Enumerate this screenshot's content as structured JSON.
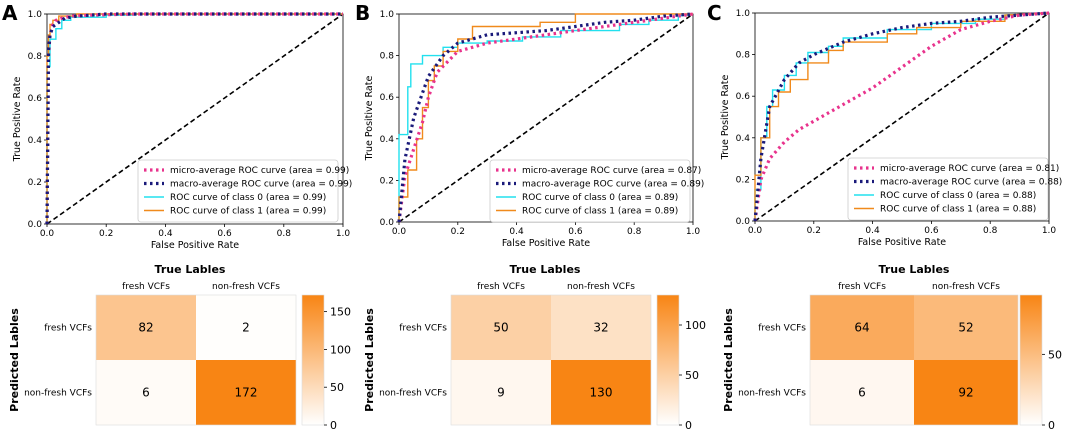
{
  "chart_data": [
    {
      "type": "line",
      "panel": "A",
      "xlabel": "False Positive Rate",
      "ylabel": "True Positive Rate",
      "xlim": [
        0,
        1
      ],
      "ylim": [
        0,
        1
      ],
      "xticks": [
        "0.0",
        "0.2",
        "0.4",
        "0.6",
        "0.8",
        "1.0"
      ],
      "yticks": [
        "0.0",
        "0.2",
        "0.4",
        "0.6",
        "0.8",
        "1.0"
      ],
      "legend_position": "lower right",
      "series": [
        {
          "name": "micro-average ROC curve (area = 0.99)",
          "color": "#e8338d",
          "style": "dotted",
          "x": [
            0,
            0.005,
            0.01,
            0.02,
            0.03,
            0.05,
            0.08,
            0.15,
            0.3,
            1.0
          ],
          "y": [
            0,
            0.8,
            0.9,
            0.95,
            0.97,
            0.98,
            0.99,
            0.995,
            1.0,
            1.0
          ]
        },
        {
          "name": "macro-average ROC curve (area = 0.99)",
          "color": "#1a1a7a",
          "style": "dotted",
          "x": [
            0,
            0.005,
            0.01,
            0.02,
            0.04,
            0.06,
            0.1,
            0.2,
            1.0
          ],
          "y": [
            0,
            0.82,
            0.9,
            0.94,
            0.96,
            0.98,
            0.99,
            1.0,
            1.0
          ]
        },
        {
          "name": "ROC curve of class 0 (area = 0.99)",
          "color": "#22e0ee",
          "style": "solid",
          "x": [
            0,
            0,
            0.01,
            0.01,
            0.03,
            0.03,
            0.05,
            0.05,
            0.08,
            0.08,
            0.2,
            0.2,
            0.3,
            0.3,
            1.0
          ],
          "y": [
            0,
            0.75,
            0.75,
            0.88,
            0.88,
            0.93,
            0.93,
            0.97,
            0.97,
            0.985,
            0.985,
            0.995,
            0.995,
            1.0,
            1.0
          ]
        },
        {
          "name": "ROC curve of class 1 (area = 0.99)",
          "color": "#f08a1c",
          "style": "solid",
          "x": [
            0,
            0,
            0.005,
            0.005,
            0.01,
            0.01,
            0.02,
            0.02,
            0.04,
            0.04,
            0.1,
            0.1,
            1.0
          ],
          "y": [
            0,
            0.8,
            0.8,
            0.9,
            0.9,
            0.95,
            0.95,
            0.97,
            0.97,
            0.99,
            0.99,
            1.0,
            1.0
          ]
        }
      ]
    },
    {
      "type": "line",
      "panel": "B",
      "xlabel": "False Positive Rate",
      "ylabel": "True Positive Rate",
      "xlim": [
        0,
        1
      ],
      "ylim": [
        0,
        1
      ],
      "xticks": [
        "0.0",
        "0.2",
        "0.4",
        "0.6",
        "0.8",
        "1.0"
      ],
      "yticks": [
        "0.0",
        "0.2",
        "0.4",
        "0.6",
        "0.8",
        "1.0"
      ],
      "legend_position": "lower right",
      "series": [
        {
          "name": "micro-average ROC curve (area = 0.87)",
          "color": "#e8338d",
          "style": "dotted",
          "x": [
            0,
            0.02,
            0.05,
            0.08,
            0.1,
            0.13,
            0.2,
            0.3,
            0.4,
            0.5,
            0.6,
            0.7,
            0.8,
            0.9,
            1.0
          ],
          "y": [
            0,
            0.22,
            0.35,
            0.48,
            0.6,
            0.72,
            0.82,
            0.86,
            0.88,
            0.9,
            0.92,
            0.94,
            0.96,
            0.98,
            1.0
          ]
        },
        {
          "name": "macro-average ROC curve (area = 0.89)",
          "color": "#1a1a7a",
          "style": "dotted",
          "x": [
            0,
            0.02,
            0.05,
            0.08,
            0.1,
            0.15,
            0.2,
            0.3,
            0.4,
            0.5,
            0.6,
            0.7,
            0.8,
            0.9,
            1.0
          ],
          "y": [
            0,
            0.3,
            0.5,
            0.62,
            0.7,
            0.8,
            0.86,
            0.9,
            0.91,
            0.92,
            0.94,
            0.96,
            0.97,
            0.99,
            1.0
          ]
        },
        {
          "name": "ROC curve of class 0 (area = 0.89)",
          "color": "#22e0ee",
          "style": "solid",
          "x": [
            0,
            0,
            0.03,
            0.03,
            0.04,
            0.04,
            0.08,
            0.08,
            0.15,
            0.15,
            0.2,
            0.2,
            0.3,
            0.3,
            0.42,
            0.42,
            0.55,
            0.55,
            0.75,
            0.75,
            0.85,
            0.85,
            0.95,
            0.95,
            1.0
          ],
          "y": [
            0,
            0.42,
            0.42,
            0.65,
            0.65,
            0.76,
            0.76,
            0.8,
            0.8,
            0.84,
            0.84,
            0.86,
            0.86,
            0.87,
            0.87,
            0.89,
            0.89,
            0.92,
            0.92,
            0.95,
            0.95,
            0.97,
            0.97,
            0.99,
            1.0
          ]
        },
        {
          "name": "ROC curve of class 1 (area = 0.89)",
          "color": "#f08a1c",
          "style": "solid",
          "x": [
            0,
            0,
            0.03,
            0.03,
            0.06,
            0.06,
            0.08,
            0.08,
            0.1,
            0.1,
            0.12,
            0.12,
            0.15,
            0.15,
            0.2,
            0.2,
            0.25,
            0.25,
            0.48,
            0.48,
            0.6,
            0.6,
            0.95,
            0.95,
            1.0
          ],
          "y": [
            0,
            0.12,
            0.12,
            0.25,
            0.25,
            0.4,
            0.4,
            0.55,
            0.55,
            0.68,
            0.68,
            0.75,
            0.75,
            0.82,
            0.82,
            0.88,
            0.88,
            0.94,
            0.94,
            0.96,
            0.96,
            1.0,
            1.0,
            1.0,
            1.0
          ]
        }
      ]
    },
    {
      "type": "line",
      "panel": "C",
      "xlabel": "False Positive Rate",
      "ylabel": "True Positive Rate",
      "xlim": [
        0,
        1
      ],
      "ylim": [
        0,
        1
      ],
      "xticks": [
        "0.0",
        "0.2",
        "0.4",
        "0.6",
        "0.8",
        "1.0"
      ],
      "yticks": [
        "0.0",
        "0.2",
        "0.4",
        "0.6",
        "0.8",
        "1.0"
      ],
      "legend_position": "lower right",
      "series": [
        {
          "name": "micro-average ROC curve (area = 0.81)",
          "color": "#e8338d",
          "style": "dotted",
          "x": [
            0,
            0.02,
            0.05,
            0.1,
            0.15,
            0.2,
            0.3,
            0.4,
            0.5,
            0.6,
            0.7,
            0.8,
            0.9,
            1.0
          ],
          "y": [
            0,
            0.2,
            0.3,
            0.38,
            0.44,
            0.48,
            0.56,
            0.64,
            0.74,
            0.84,
            0.92,
            0.96,
            0.99,
            1.0
          ]
        },
        {
          "name": "macro-average ROC curve (area = 0.88)",
          "color": "#1a1a7a",
          "style": "dotted",
          "x": [
            0,
            0.02,
            0.05,
            0.1,
            0.15,
            0.2,
            0.3,
            0.4,
            0.5,
            0.6,
            0.7,
            0.8,
            0.9,
            1.0
          ],
          "y": [
            0,
            0.3,
            0.55,
            0.68,
            0.76,
            0.8,
            0.86,
            0.9,
            0.93,
            0.95,
            0.96,
            0.98,
            0.99,
            1.0
          ]
        },
        {
          "name": "ROC curve of class 0 (area = 0.88)",
          "color": "#22e0ee",
          "style": "solid",
          "x": [
            0,
            0,
            0.02,
            0.02,
            0.04,
            0.04,
            0.06,
            0.06,
            0.1,
            0.1,
            0.14,
            0.14,
            0.18,
            0.18,
            0.25,
            0.25,
            0.3,
            0.3,
            0.45,
            0.45,
            0.6,
            0.6,
            0.75,
            0.75,
            0.85,
            0.85,
            1.0
          ],
          "y": [
            0,
            0.15,
            0.15,
            0.4,
            0.4,
            0.55,
            0.55,
            0.63,
            0.63,
            0.7,
            0.7,
            0.76,
            0.76,
            0.81,
            0.81,
            0.84,
            0.84,
            0.88,
            0.88,
            0.92,
            0.92,
            0.95,
            0.95,
            0.97,
            0.97,
            0.99,
            1.0
          ]
        },
        {
          "name": "ROC curve of class 1 (area = 0.88)",
          "color": "#f08a1c",
          "style": "solid",
          "x": [
            0,
            0,
            0.02,
            0.02,
            0.05,
            0.05,
            0.08,
            0.08,
            0.12,
            0.12,
            0.18,
            0.18,
            0.25,
            0.25,
            0.3,
            0.3,
            0.45,
            0.45,
            0.55,
            0.55,
            0.7,
            0.7,
            0.85,
            0.85,
            1.0
          ],
          "y": [
            0,
            0.22,
            0.22,
            0.4,
            0.4,
            0.55,
            0.55,
            0.62,
            0.62,
            0.68,
            0.68,
            0.76,
            0.76,
            0.82,
            0.82,
            0.86,
            0.86,
            0.9,
            0.9,
            0.93,
            0.93,
            0.96,
            0.96,
            0.99,
            1.0
          ]
        }
      ]
    },
    {
      "type": "heatmap",
      "panel": "A",
      "title": "True Lables",
      "ylabel": "Predicted Lables",
      "col_labels": [
        "fresh VCFs",
        "non-fresh VCFs"
      ],
      "row_labels": [
        "fresh VCFs",
        "non-fresh VCFs"
      ],
      "values": [
        [
          82,
          2
        ],
        [
          6,
          172
        ]
      ],
      "colorbar_range": [
        0,
        172
      ],
      "colorbar_ticks": [
        0,
        50,
        100,
        150
      ]
    },
    {
      "type": "heatmap",
      "panel": "B",
      "title": "True Lables",
      "ylabel": "Predicted Lables",
      "col_labels": [
        "fresh VCFs",
        "non-fresh VCFs"
      ],
      "row_labels": [
        "fresh VCFs",
        "non-fresh VCFs"
      ],
      "values": [
        [
          50,
          32
        ],
        [
          9,
          130
        ]
      ],
      "colorbar_range": [
        0,
        130
      ],
      "colorbar_ticks": [
        0,
        50,
        100
      ]
    },
    {
      "type": "heatmap",
      "panel": "C",
      "title": "True Lables",
      "ylabel": "Predicted Lables",
      "col_labels": [
        "fresh VCFs",
        "non-fresh VCFs"
      ],
      "row_labels": [
        "fresh VCFs",
        "non-fresh VCFs"
      ],
      "values": [
        [
          64,
          52
        ],
        [
          6,
          92
        ]
      ],
      "colorbar_range": [
        0,
        92
      ],
      "colorbar_ticks": [
        0,
        50
      ]
    }
  ]
}
